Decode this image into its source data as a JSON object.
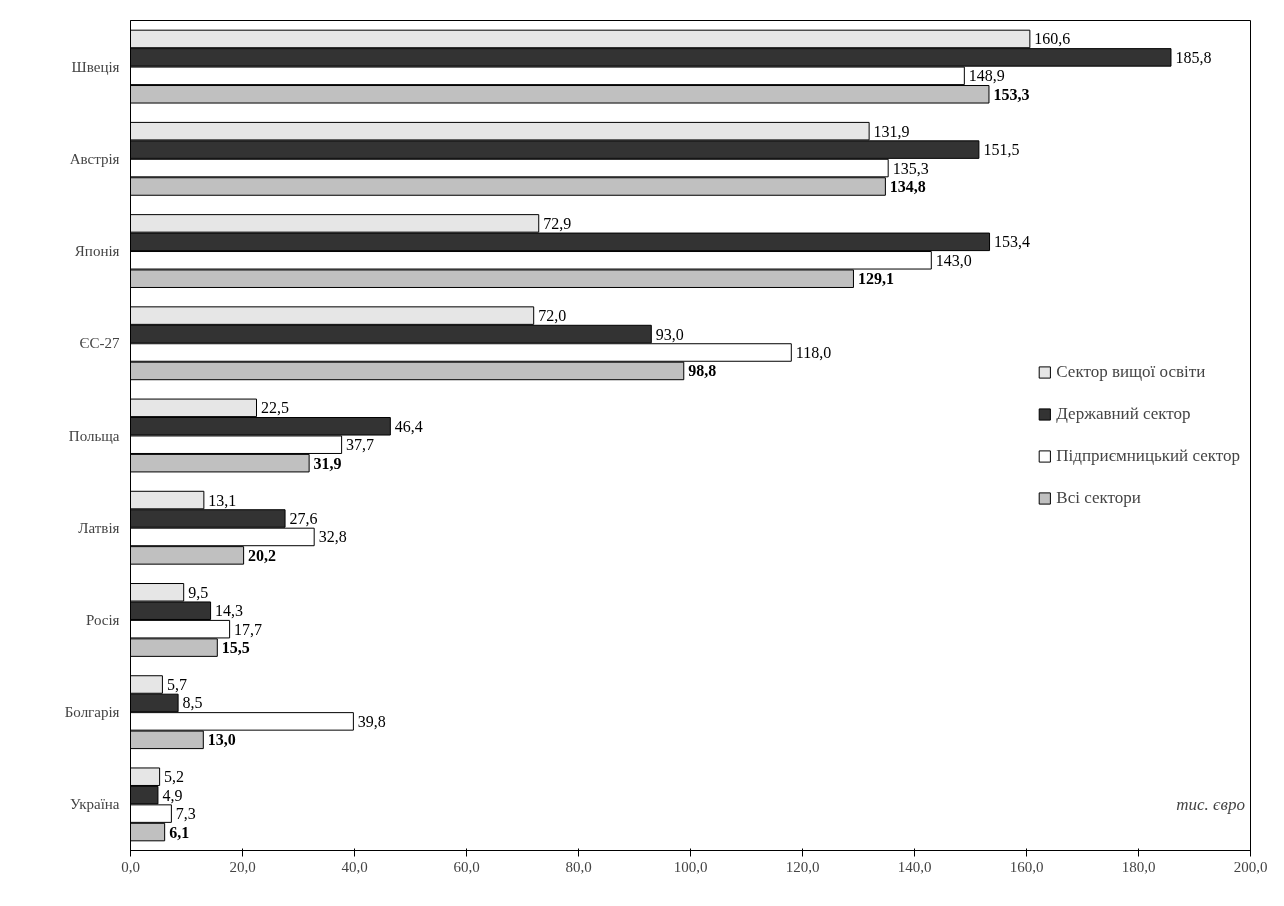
{
  "chart_data": {
    "type": "bar",
    "orientation": "horizontal",
    "categories": [
      "Швеція",
      "Австрія",
      "Японія",
      "ЄС-27",
      "Польща",
      "Латвія",
      "Росія",
      "Болгарія",
      "Україна"
    ],
    "series": [
      {
        "name": "Сектор вищої освіти",
        "color": "#e6e6e6",
        "values": [
          160.6,
          131.9,
          72.9,
          72.0,
          22.5,
          13.1,
          9.5,
          5.7,
          5.2
        ],
        "value_labels": [
          "160,6",
          "131,9",
          "72,9",
          "72,0",
          "22,5",
          "13,1",
          "9,5",
          "5,7",
          "5,2"
        ]
      },
      {
        "name": "Державний сектор",
        "color": "#333333",
        "values": [
          185.8,
          151.5,
          153.4,
          93.0,
          46.4,
          27.6,
          14.3,
          8.5,
          4.9
        ],
        "value_labels": [
          "185,8",
          "151,5",
          "153,4",
          "93,0",
          "46,4",
          "27,6",
          "14,3",
          "8,5",
          "4,9"
        ]
      },
      {
        "name": "Підприємницький сектор",
        "color": "#ffffff",
        "values": [
          148.9,
          135.3,
          143.0,
          118.0,
          37.7,
          32.8,
          17.7,
          39.8,
          7.3
        ],
        "value_labels": [
          "148,9",
          "135,3",
          "143,0",
          "118,0",
          "37,7",
          "32,8",
          "17,7",
          "39,8",
          "7,3"
        ]
      },
      {
        "name": "Всі сектори",
        "color": "#c0c0c0",
        "values": [
          153.3,
          134.8,
          129.1,
          98.8,
          31.9,
          20.2,
          15.5,
          13.0,
          6.1
        ],
        "value_labels": [
          "153,3",
          "134,8",
          "129,1",
          "98,8",
          "31,9",
          "20,2",
          "15,5",
          "13,0",
          "6,1"
        ]
      }
    ],
    "xlim": [
      0,
      200
    ],
    "xticks": [
      {
        "value": 0,
        "label": "0,0"
      },
      {
        "value": 20,
        "label": "20,0"
      },
      {
        "value": 40,
        "label": "40,0"
      },
      {
        "value": 60,
        "label": "60,0"
      },
      {
        "value": 80,
        "label": "80,0"
      },
      {
        "value": 100,
        "label": "100,0"
      },
      {
        "value": 120,
        "label": "120,0"
      },
      {
        "value": 140,
        "label": "140,0"
      },
      {
        "value": 160,
        "label": "160,0"
      },
      {
        "value": 180,
        "label": "180,0"
      },
      {
        "value": 200,
        "label": "200,0"
      }
    ],
    "annotations": [
      "тис. євро"
    ],
    "legend": "right",
    "grid": false
  }
}
